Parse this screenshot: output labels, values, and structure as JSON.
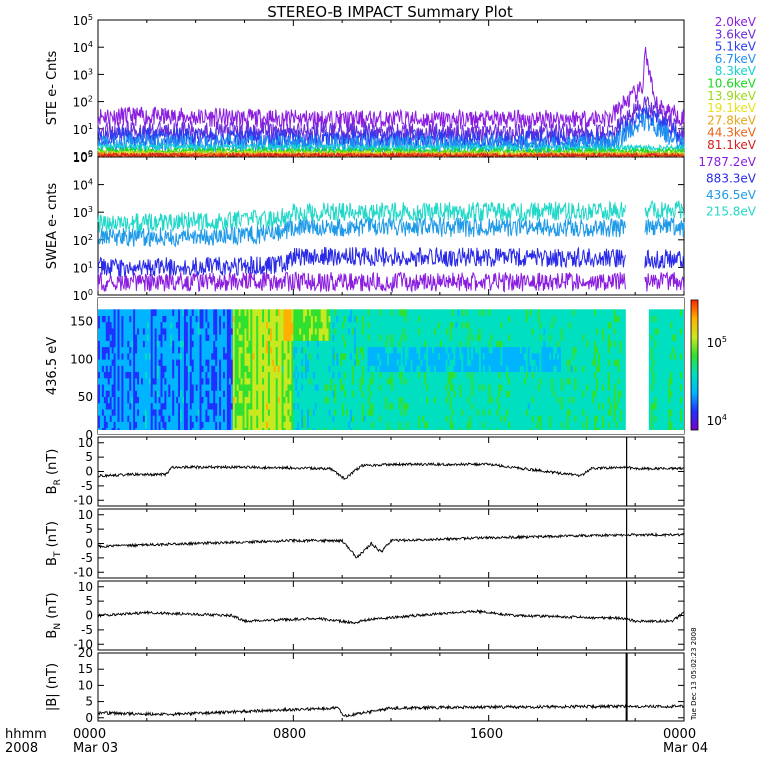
{
  "title": "STEREO-B IMPACT Summary Plot",
  "timestamp_note": "Tue Dec 13 05:02:23 2008",
  "time_axis": {
    "row1_labels": [
      "hhmm",
      "0000",
      "0800",
      "1600",
      "0000"
    ],
    "row2_labels": [
      "2008",
      "Mar 03",
      "Mar 04"
    ]
  },
  "colors": {
    "ste": [
      "#8a1de0",
      "#6a2bd8",
      "#2b3cf0",
      "#1e8ef0",
      "#12d2d2",
      "#18d81e",
      "#9ad81a",
      "#e8e21a",
      "#e8a61a",
      "#e8661a",
      "#d81e1e"
    ],
    "swea": [
      "#8a1de0",
      "#2a2ae8",
      "#1e9ae8",
      "#22d8c8"
    ],
    "colorbar": [
      "#7a00c8",
      "#2030ff",
      "#00b4ff",
      "#00e0c0",
      "#30e030",
      "#c8e820",
      "#ffb000",
      "#ff2800"
    ]
  },
  "panels": {
    "ste": {
      "ylabel": "STE e- Cnts",
      "ticks": [
        {
          "base": "10",
          "exp": "0"
        },
        {
          "base": "10",
          "exp": "1"
        },
        {
          "base": "10",
          "exp": "2"
        },
        {
          "base": "10",
          "exp": "3"
        },
        {
          "base": "10",
          "exp": "4"
        },
        {
          "base": "10",
          "exp": "5"
        }
      ],
      "legend": [
        "2.0keV",
        "3.6keV",
        "5.1keV",
        "6.7keV",
        "8.3keV",
        "10.6keV",
        "13.9keV",
        "19.1keV",
        "27.8keV",
        "44.3keV",
        "81.1keV"
      ]
    },
    "swea": {
      "ylabel": "SWEA e- cnts",
      "ticks": [
        {
          "base": "10",
          "exp": "0"
        },
        {
          "base": "10",
          "exp": "1"
        },
        {
          "base": "10",
          "exp": "2"
        },
        {
          "base": "10",
          "exp": "3"
        },
        {
          "base": "10",
          "exp": "4"
        },
        {
          "base": "10",
          "exp": "5"
        }
      ],
      "legend": [
        "1787.2eV",
        "883.3eV",
        "436.5eV",
        "215.8eV"
      ]
    },
    "spectrogram": {
      "ylabel": "436.5 eV",
      "ticks": [
        "0",
        "50",
        "100",
        "150"
      ],
      "colorbar_ticks": [
        {
          "base": "10",
          "exp": "5"
        },
        {
          "base": "10",
          "exp": "4"
        }
      ]
    },
    "br": {
      "ylabel_main": "B",
      "ylabel_sub": "R",
      "ylabel_unit": "(nT)",
      "ticks": [
        "10",
        "5",
        "0",
        "-5",
        "-10"
      ]
    },
    "bt": {
      "ylabel_main": "B",
      "ylabel_sub": "T",
      "ylabel_unit": "(nT)",
      "ticks": [
        "10",
        "5",
        "0",
        "-5",
        "-10"
      ]
    },
    "bn": {
      "ylabel_main": "B",
      "ylabel_sub": "N",
      "ylabel_unit": "(nT)",
      "ticks": [
        "10",
        "5",
        "0",
        "-5",
        "-10"
      ]
    },
    "bmag": {
      "ylabel": "|B| (nT)",
      "ticks": [
        "20",
        "15",
        "10",
        "5",
        "0"
      ]
    }
  },
  "chart_data": [
    {
      "type": "line",
      "scale": "log",
      "ylim": [
        1,
        100000
      ],
      "x_unit": "hours since 2008-03-03 0000",
      "xlim": [
        0,
        24
      ],
      "series": [
        {
          "name": "2.0keV",
          "x": [
            0,
            6,
            10,
            16,
            21,
            21.5,
            22.3,
            22.4,
            22.8,
            24
          ],
          "y": [
            30,
            25,
            22,
            22,
            25,
            80,
            300,
            8000,
            80,
            25
          ]
        },
        {
          "name": "3.6keV",
          "x": [
            0,
            8,
            16,
            21,
            22.4,
            24
          ],
          "y": [
            9,
            8,
            7,
            7,
            90,
            7
          ]
        },
        {
          "name": "5.1keV",
          "x": [
            0,
            8,
            16,
            21,
            22.4,
            24
          ],
          "y": [
            5,
            4.5,
            4,
            4,
            40,
            4
          ]
        },
        {
          "name": "6.7keV",
          "x": [
            0,
            8,
            16,
            21,
            22.4,
            24
          ],
          "y": [
            3,
            2.8,
            2.6,
            2.6,
            20,
            2.6
          ]
        },
        {
          "name": "8.3keV",
          "x": [
            0,
            24
          ],
          "y": [
            2.2,
            2
          ]
        },
        {
          "name": "10.6keV",
          "x": [
            0,
            24
          ],
          "y": [
            1.6,
            1.5
          ]
        },
        {
          "name": "13.9keV",
          "x": [
            0,
            24
          ],
          "y": [
            1.3,
            1.2
          ]
        },
        {
          "name": "19.1keV",
          "x": [
            0,
            24
          ],
          "y": [
            1.2,
            1.1
          ]
        },
        {
          "name": "27.8keV",
          "x": [
            0,
            24
          ],
          "y": [
            1.1,
            1.05
          ]
        },
        {
          "name": "44.3keV",
          "x": [
            0,
            24
          ],
          "y": [
            1.05,
            1.02
          ]
        },
        {
          "name": "81.1keV",
          "x": [
            0,
            24
          ],
          "y": [
            1.02,
            1.0
          ]
        }
      ]
    },
    {
      "type": "line",
      "scale": "log",
      "ylim": [
        1,
        100000
      ],
      "x_unit": "hours since 2008-03-03 0000",
      "xlim": [
        0,
        24
      ],
      "gap_hours": [
        21.6,
        22.4
      ],
      "series": [
        {
          "name": "1787.2eV",
          "x": [
            0,
            24
          ],
          "y": [
            3,
            3
          ]
        },
        {
          "name": "883.3eV",
          "x": [
            0,
            7.5,
            8,
            21.6,
            22.4,
            24
          ],
          "y": [
            10,
            12,
            25,
            22,
            20,
            20
          ]
        },
        {
          "name": "436.5eV",
          "x": [
            0,
            5.5,
            7.5,
            8,
            21.6,
            22.4,
            24
          ],
          "y": [
            120,
            140,
            180,
            300,
            260,
            320,
            280
          ]
        },
        {
          "name": "215.8eV",
          "x": [
            0,
            5.5,
            7.5,
            8,
            21.6,
            22.4,
            24
          ],
          "y": [
            400,
            500,
            600,
            1000,
            1100,
            1300,
            1200
          ]
        }
      ]
    },
    {
      "type": "heatmap",
      "ylabel": "436.5 eV",
      "ylim": [
        0,
        180
      ],
      "x_unit": "hours since 2008-03-03 0000",
      "xlim": [
        0,
        24
      ],
      "colorbar_log_range": [
        10000,
        300000
      ],
      "gap_hours": [
        21.6,
        22.6
      ]
    },
    {
      "type": "line",
      "ylim": [
        -12,
        12
      ],
      "x_unit": "hours since 2008-03-03 0000",
      "xlim": [
        0,
        24
      ],
      "series": [
        {
          "name": "B_R",
          "x": [
            0,
            1.5,
            2.8,
            3,
            6,
            9.5,
            10.1,
            10.8,
            12,
            16,
            19.8,
            20.2,
            21.6,
            22,
            24
          ],
          "y": [
            -1.5,
            -1,
            -1,
            1.5,
            1.5,
            1,
            -2.5,
            2,
            2.5,
            2.5,
            -1.5,
            1,
            1.5,
            1,
            1
          ]
        }
      ]
    },
    {
      "type": "line",
      "ylim": [
        -12,
        12
      ],
      "x_unit": "hours since 2008-03-03 0000",
      "xlim": [
        0,
        24
      ],
      "series": [
        {
          "name": "B_T",
          "x": [
            0,
            4,
            8,
            10,
            10.6,
            11.2,
            11.6,
            12,
            16,
            21.6,
            22,
            24
          ],
          "y": [
            -1,
            0,
            1,
            1,
            -5,
            0,
            -3,
            1,
            2,
            3,
            3,
            3
          ]
        }
      ]
    },
    {
      "type": "line",
      "ylim": [
        -12,
        12
      ],
      "x_unit": "hours since 2008-03-03 0000",
      "xlim": [
        0,
        24
      ],
      "series": [
        {
          "name": "B_N",
          "x": [
            0,
            2,
            5.5,
            6,
            9,
            10.5,
            11,
            13,
            15.5,
            17,
            21.6,
            22,
            23.5,
            24
          ],
          "y": [
            0,
            1,
            0,
            -2,
            -1,
            -2.5,
            -1.5,
            0,
            1.5,
            0,
            -1,
            -2,
            -2,
            1
          ]
        }
      ]
    },
    {
      "type": "line",
      "ylim": [
        -1,
        20
      ],
      "x_unit": "hours since 2008-03-03 0000",
      "xlim": [
        0,
        24
      ],
      "series": [
        {
          "name": "|B|",
          "x": [
            0,
            3,
            6,
            9.8,
            10.1,
            12,
            16,
            21.6,
            22,
            24
          ],
          "y": [
            1.5,
            1,
            2,
            3,
            0.5,
            3,
            3.3,
            3.5,
            3.5,
            3.5
          ]
        }
      ]
    }
  ]
}
